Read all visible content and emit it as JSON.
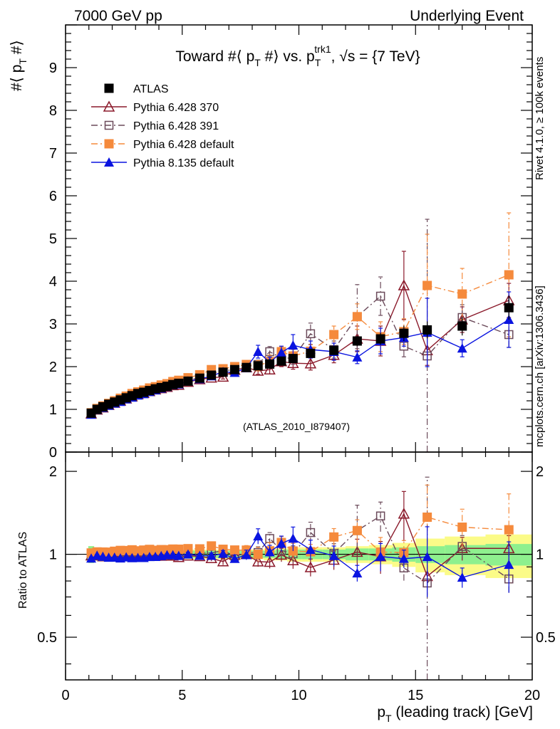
{
  "header": {
    "left": "7000 GeV pp",
    "right": "Underlying Event"
  },
  "side_labels": {
    "rivet": "Rivet 4.1.0, ≥ 100k events",
    "mcplots": "mcplots.cern.ch [arXiv:1306.3436]"
  },
  "chart_data": {
    "type": "scatter",
    "title_parts": {
      "a": "Toward #⟨ p",
      "a_sub": "T",
      "b": " #⟩ vs. p",
      "b_sub": "T",
      "b_sup": "trk1",
      "c": ", √s = {7 TeV}"
    },
    "ylabel_parts": {
      "a": "#⟨ p",
      "sub": "T",
      "b": " #⟩"
    },
    "xlabel_parts": {
      "a": "p",
      "sub": "T",
      "b": " (leading track) [GeV]"
    },
    "ratio_ylabel": "Ratio to ATLAS",
    "watermark": "(ATLAS_2010_I879407)",
    "xlim": [
      0,
      20
    ],
    "ylim": [
      0,
      10
    ],
    "ratio_ylim": [
      0.35,
      2.35
    ],
    "x_ticks": [
      "0",
      "5",
      "10",
      "15",
      "20"
    ],
    "y_ticks": [
      "0",
      "1",
      "2",
      "3",
      "4",
      "5",
      "6",
      "7",
      "8",
      "9"
    ],
    "ratio_ticks": [
      "0.5",
      "1",
      "2"
    ],
    "legend": [
      {
        "name": "ATLAS",
        "color": "#000000",
        "marker": "square-filled",
        "line": "none"
      },
      {
        "name": "Pythia 6.428 370",
        "color": "#8b1a2b",
        "marker": "triangle-open",
        "line": "solid"
      },
      {
        "name": "Pythia 6.428 391",
        "color": "#6b4a5a",
        "marker": "square-open",
        "line": "dashdot"
      },
      {
        "name": "Pythia 6.428 default",
        "color": "#f58a3c",
        "marker": "square-filled",
        "line": "dashdot"
      },
      {
        "name": "Pythia 8.135 default",
        "color": "#0a14e0",
        "marker": "triangle-filled",
        "line": "solid"
      }
    ],
    "x": [
      1.1,
      1.35,
      1.6,
      1.85,
      2.1,
      2.35,
      2.6,
      2.85,
      3.1,
      3.35,
      3.6,
      3.85,
      4.1,
      4.35,
      4.6,
      4.85,
      5.25,
      5.75,
      6.25,
      6.75,
      7.25,
      7.75,
      8.25,
      8.75,
      9.25,
      9.75,
      10.5,
      11.5,
      12.5,
      13.5,
      14.5,
      15.5,
      17.0,
      19.0
    ],
    "data": {
      "y": [
        0.91,
        1.0,
        1.06,
        1.12,
        1.17,
        1.22,
        1.27,
        1.32,
        1.37,
        1.4,
        1.44,
        1.48,
        1.51,
        1.54,
        1.58,
        1.61,
        1.66,
        1.73,
        1.8,
        1.87,
        1.93,
        1.98,
        2.02,
        2.06,
        2.13,
        2.19,
        2.31,
        2.38,
        2.6,
        2.65,
        2.78,
        2.86,
        2.95,
        3.38
      ],
      "err": [
        0.02,
        0.02,
        0.02,
        0.02,
        0.02,
        0.02,
        0.02,
        0.02,
        0.02,
        0.02,
        0.02,
        0.02,
        0.02,
        0.02,
        0.02,
        0.02,
        0.03,
        0.03,
        0.03,
        0.04,
        0.04,
        0.05,
        0.06,
        0.06,
        0.07,
        0.08,
        0.08,
        0.1,
        0.12,
        0.14,
        0.18,
        0.2,
        0.22,
        0.28
      ],
      "band_stat": [
        0.07,
        0.05,
        0.04,
        0.03,
        0.03,
        0.03,
        0.03,
        0.03,
        0.03,
        0.03,
        0.03,
        0.03,
        0.03,
        0.03,
        0.03,
        0.03,
        0.03,
        0.03,
        0.03,
        0.03,
        0.03,
        0.03,
        0.03,
        0.03,
        0.04,
        0.04,
        0.04,
        0.04,
        0.05,
        0.05,
        0.06,
        0.07,
        0.08,
        0.09
      ],
      "band_tot": [
        0.07,
        0.05,
        0.04,
        0.04,
        0.04,
        0.04,
        0.04,
        0.04,
        0.04,
        0.04,
        0.04,
        0.04,
        0.04,
        0.04,
        0.04,
        0.04,
        0.04,
        0.04,
        0.04,
        0.04,
        0.04,
        0.04,
        0.04,
        0.05,
        0.05,
        0.06,
        0.06,
        0.06,
        0.07,
        0.08,
        0.1,
        0.14,
        0.16,
        0.18
      ]
    },
    "series": [
      {
        "name": "Pythia 6.428 370",
        "y": [
          0.9,
          0.99,
          1.04,
          1.1,
          1.15,
          1.2,
          1.25,
          1.3,
          1.35,
          1.38,
          1.42,
          1.46,
          1.49,
          1.52,
          1.56,
          1.57,
          1.64,
          1.7,
          1.74,
          1.76,
          1.92,
          1.98,
          1.9,
          1.93,
          2.12,
          2.08,
          2.07,
          2.27,
          2.65,
          2.6,
          3.9,
          2.38,
          3.1,
          3.55
        ],
        "err": [
          0.01,
          0.01,
          0.01,
          0.01,
          0.01,
          0.01,
          0.01,
          0.01,
          0.01,
          0.01,
          0.01,
          0.02,
          0.02,
          0.02,
          0.02,
          0.02,
          0.03,
          0.03,
          0.04,
          0.05,
          0.06,
          0.08,
          0.08,
          0.1,
          0.12,
          0.14,
          0.15,
          0.18,
          0.3,
          0.35,
          0.8,
          0.35,
          0.3,
          0.4
        ]
      },
      {
        "name": "Pythia 6.428 391",
        "y": [
          0.9,
          0.99,
          1.04,
          1.1,
          1.15,
          1.2,
          1.25,
          1.3,
          1.35,
          1.38,
          1.43,
          1.46,
          1.5,
          1.53,
          1.57,
          1.6,
          1.67,
          1.75,
          1.82,
          1.93,
          1.9,
          2.0,
          2.05,
          2.35,
          2.2,
          2.2,
          2.77,
          2.4,
          3.17,
          3.65,
          2.48,
          2.25,
          3.15,
          2.75
        ],
        "err": [
          0.01,
          0.01,
          0.01,
          0.01,
          0.01,
          0.01,
          0.01,
          0.01,
          0.01,
          0.01,
          0.01,
          0.02,
          0.02,
          0.02,
          0.02,
          0.02,
          0.03,
          0.03,
          0.04,
          0.05,
          0.06,
          0.08,
          0.1,
          0.12,
          0.12,
          0.15,
          0.25,
          0.2,
          0.75,
          0.45,
          0.25,
          3.2,
          0.3,
          0.3
        ]
      },
      {
        "name": "Pythia 6.428 default",
        "y": [
          0.92,
          1.02,
          1.08,
          1.14,
          1.2,
          1.26,
          1.31,
          1.37,
          1.41,
          1.45,
          1.5,
          1.53,
          1.57,
          1.6,
          1.65,
          1.68,
          1.74,
          1.81,
          1.93,
          1.95,
          2.0,
          2.05,
          2.02,
          2.12,
          2.35,
          2.25,
          2.36,
          2.75,
          3.17,
          2.7,
          2.82,
          3.9,
          3.7,
          4.15
        ],
        "err": [
          0.01,
          0.01,
          0.01,
          0.01,
          0.01,
          0.01,
          0.01,
          0.01,
          0.01,
          0.01,
          0.01,
          0.02,
          0.02,
          0.02,
          0.02,
          0.02,
          0.03,
          0.03,
          0.04,
          0.05,
          0.06,
          0.08,
          0.12,
          0.15,
          0.12,
          0.15,
          0.15,
          0.2,
          0.3,
          0.35,
          0.3,
          1.2,
          0.6,
          1.45
        ]
      },
      {
        "name": "Pythia 8.135 default",
        "y": [
          0.88,
          0.99,
          1.04,
          1.09,
          1.14,
          1.18,
          1.24,
          1.28,
          1.33,
          1.36,
          1.41,
          1.45,
          1.49,
          1.53,
          1.57,
          1.59,
          1.66,
          1.71,
          1.78,
          1.88,
          1.86,
          1.97,
          2.35,
          2.1,
          2.33,
          2.5,
          2.4,
          2.35,
          2.22,
          2.6,
          2.68,
          2.8,
          2.43,
          3.1
        ],
        "err": [
          0.01,
          0.01,
          0.01,
          0.01,
          0.01,
          0.01,
          0.01,
          0.01,
          0.01,
          0.01,
          0.01,
          0.02,
          0.02,
          0.02,
          0.02,
          0.02,
          0.03,
          0.03,
          0.04,
          0.05,
          0.06,
          0.08,
          0.15,
          0.12,
          0.15,
          0.25,
          0.2,
          0.2,
          0.15,
          0.3,
          0.2,
          0.8,
          0.2,
          0.65
        ]
      }
    ]
  }
}
